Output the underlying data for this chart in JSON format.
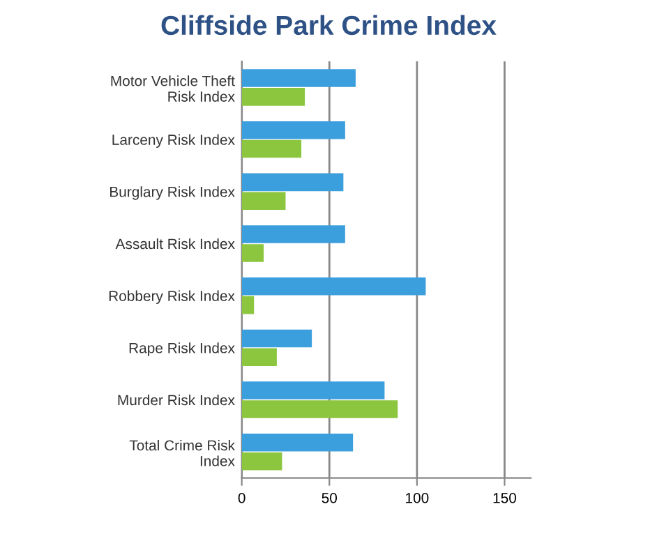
{
  "chart_data": {
    "type": "bar",
    "orientation": "horizontal",
    "title": "Cliffside Park Crime Index",
    "categories": [
      "Motor Vehicle Theft\nRisk Index",
      "Larceny Risk Index",
      "Burglary Risk Index",
      "Assault Risk Index",
      "Robbery Risk Index",
      "Rape Risk Index",
      "Murder Risk Index",
      "Total Crime Risk\nIndex"
    ],
    "series": [
      {
        "color": "#3b9fde",
        "values": [
          65,
          59,
          58,
          59,
          105,
          40,
          81.5,
          63.5
        ]
      },
      {
        "color": "#8cc63f",
        "values": [
          36,
          34,
          25,
          12.5,
          7,
          20,
          89,
          23
        ]
      }
    ],
    "xlim": [
      0,
      165
    ],
    "xticks": [
      0,
      50,
      100,
      150
    ],
    "grid": "x",
    "legend": false
  }
}
